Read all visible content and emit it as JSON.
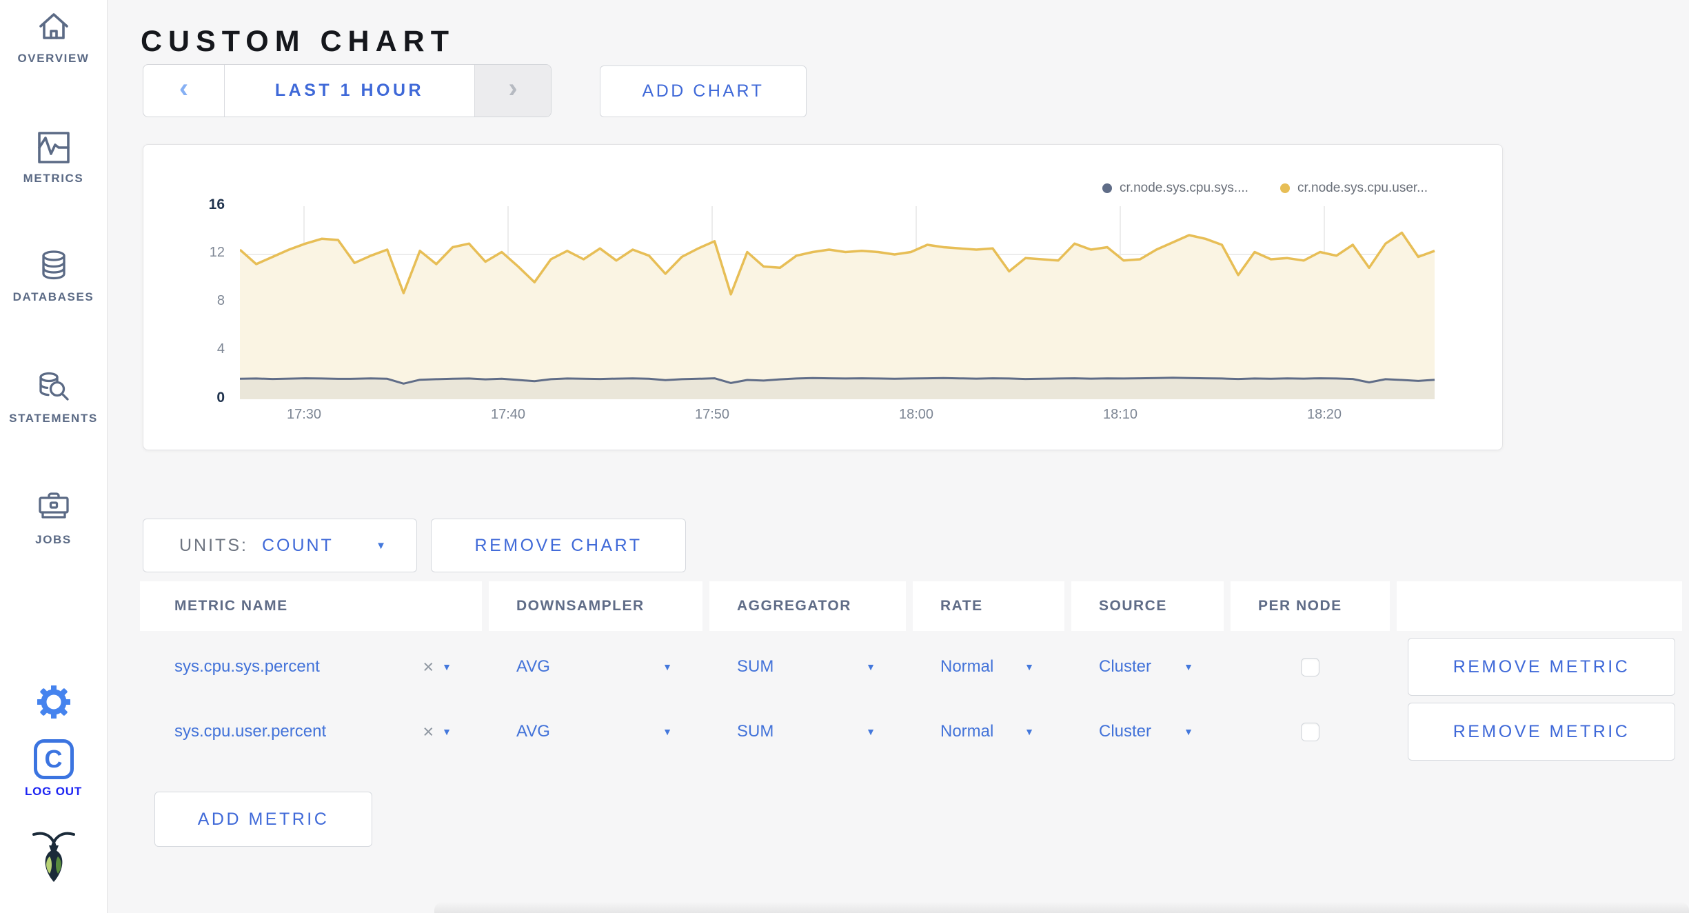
{
  "header": {
    "title": "CUSTOM CHART"
  },
  "icons": {
    "prev": "‹",
    "next": "›",
    "caret": "▼",
    "close": "×"
  },
  "sidebar": {
    "items": [
      {
        "label": "OVERVIEW",
        "icon": "home-icon"
      },
      {
        "label": "METRICS",
        "icon": "metrics-icon"
      },
      {
        "label": "DATABASES",
        "icon": "databases-icon"
      },
      {
        "label": "STATEMENTS",
        "icon": "statements-icon"
      },
      {
        "label": "JOBS",
        "icon": "jobs-icon"
      }
    ],
    "logout_label": "LOG OUT"
  },
  "toolbar": {
    "time_range_label": "LAST 1 HOUR",
    "add_chart_label": "ADD CHART"
  },
  "chart_controls": {
    "units_label": "UNITS:",
    "units_value": "COUNT",
    "remove_chart_label": "REMOVE CHART",
    "add_metric_label": "ADD METRIC",
    "remove_metric_label": "REMOVE METRIC"
  },
  "chart_data": {
    "type": "area",
    "title": "",
    "xlabel": "",
    "ylabel": "",
    "ylim": [
      0,
      16
    ],
    "y_ticks": [
      0,
      4,
      8,
      12,
      16
    ],
    "x_ticks": [
      "17:30",
      "17:40",
      "17:50",
      "18:00",
      "18:10",
      "18:20"
    ],
    "grid": true,
    "legend_position": "top-right",
    "series": [
      {
        "legend": "cr.node.sys.cpu.sys....",
        "color": "#5f6c87",
        "fill": "rgba(95,108,135,0.10)",
        "values": [
          1.7,
          1.72,
          1.68,
          1.71,
          1.74,
          1.72,
          1.69,
          1.7,
          1.73,
          1.7,
          1.3,
          1.62,
          1.66,
          1.7,
          1.72,
          1.65,
          1.7,
          1.6,
          1.5,
          1.66,
          1.72,
          1.7,
          1.68,
          1.71,
          1.73,
          1.7,
          1.58,
          1.66,
          1.7,
          1.74,
          1.35,
          1.6,
          1.55,
          1.65,
          1.72,
          1.76,
          1.74,
          1.72,
          1.74,
          1.72,
          1.7,
          1.72,
          1.74,
          1.76,
          1.73,
          1.71,
          1.74,
          1.72,
          1.68,
          1.7,
          1.72,
          1.74,
          1.71,
          1.73,
          1.72,
          1.74,
          1.76,
          1.78,
          1.76,
          1.74,
          1.72,
          1.68,
          1.72,
          1.7,
          1.73,
          1.71,
          1.74,
          1.72,
          1.68,
          1.4,
          1.66,
          1.6,
          1.52,
          1.62
        ]
      },
      {
        "legend": "cr.node.sys.cpu.user...",
        "color": "#e7be56",
        "fill": "#faf4e3",
        "values": [
          12.4,
          11.2,
          11.8,
          12.4,
          12.9,
          13.3,
          13.2,
          11.3,
          11.9,
          12.4,
          8.8,
          12.3,
          11.2,
          12.6,
          12.9,
          11.4,
          12.2,
          11.0,
          9.7,
          11.6,
          12.3,
          11.6,
          12.5,
          11.5,
          12.4,
          11.9,
          10.4,
          11.8,
          12.5,
          13.1,
          8.7,
          12.2,
          11.0,
          10.9,
          11.9,
          12.2,
          12.4,
          12.2,
          12.3,
          12.2,
          12.0,
          12.2,
          12.8,
          12.6,
          12.5,
          12.4,
          12.5,
          10.6,
          11.7,
          11.6,
          11.5,
          12.9,
          12.4,
          12.6,
          11.5,
          11.6,
          12.4,
          13.0,
          13.6,
          13.3,
          12.8,
          10.3,
          12.2,
          11.6,
          11.7,
          11.5,
          12.2,
          11.9,
          12.8,
          10.9,
          12.9,
          13.8,
          11.8,
          12.3
        ]
      }
    ]
  },
  "table": {
    "headers": [
      "METRIC NAME",
      "DOWNSAMPLER",
      "AGGREGATOR",
      "RATE",
      "SOURCE",
      "PER NODE",
      ""
    ],
    "rows": [
      {
        "metric": "sys.cpu.sys.percent",
        "downsampler": "AVG",
        "aggregator": "SUM",
        "rate": "Normal",
        "source": "Cluster",
        "per_node": false
      },
      {
        "metric": "sys.cpu.user.percent",
        "downsampler": "AVG",
        "aggregator": "SUM",
        "rate": "Normal",
        "source": "Cluster",
        "per_node": false
      }
    ]
  },
  "colors": {
    "accent_blue": "#3f69d8",
    "logout_blue": "#1d24f3",
    "sidebar_slate": "#5b6a85",
    "series_sys": "#5f6c87",
    "series_user": "#e7be56",
    "page_bg": "#f6f6f7"
  }
}
